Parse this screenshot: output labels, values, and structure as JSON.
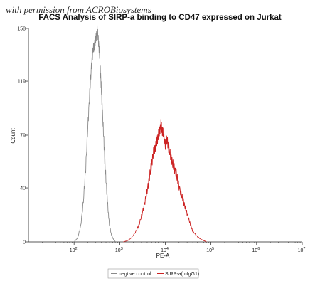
{
  "watermark": "with permission from ACROBiosystems",
  "chart_data": {
    "type": "line",
    "title": "FACS Analysis of SIRP-a binding to CD47 expressed on Jurkat",
    "xlabel": "PE-A",
    "ylabel": "Count",
    "x_scale": "log",
    "xlim": [
      10,
      10000000
    ],
    "ylim": [
      0,
      158
    ],
    "y_ticks": [
      0,
      40,
      79,
      119,
      158
    ],
    "x_ticks": [
      {
        "value": 100,
        "base": "10",
        "exp": "2"
      },
      {
        "value": 1000,
        "base": "10",
        "exp": "3"
      },
      {
        "value": 10000,
        "base": "10",
        "exp": "4"
      },
      {
        "value": 100000,
        "base": "10",
        "exp": "5"
      },
      {
        "value": 1000000,
        "base": "10",
        "exp": "6"
      },
      {
        "value": 10000000,
        "base": "10",
        "exp": "7"
      }
    ],
    "grid": false,
    "legend_position": "bottom",
    "series": [
      {
        "name": "negtive control",
        "color": "#8a8a8a",
        "x": [
          100,
          120,
          140,
          160,
          180,
          200,
          220,
          240,
          260,
          280,
          300,
          320,
          340,
          360,
          380,
          400,
          420,
          450,
          480,
          520,
          560,
          600,
          650,
          700,
          760,
          820
        ],
        "values": [
          0,
          3,
          12,
          30,
          55,
          85,
          110,
          130,
          142,
          146,
          150,
          157,
          150,
          140,
          125,
          110,
          95,
          75,
          55,
          38,
          22,
          12,
          6,
          3,
          1,
          0
        ]
      },
      {
        "name": "SIRP-a(mIgG1)",
        "color": "#cc2222",
        "x": [
          1200,
          1500,
          1800,
          2200,
          2600,
          3000,
          3500,
          4000,
          4500,
          5000,
          5500,
          6000,
          6500,
          7000,
          7500,
          8000,
          8500,
          9000,
          10000,
          11000,
          12000,
          13500,
          15000,
          17000,
          19000,
          22000,
          25000,
          28000,
          32000,
          36000,
          40000,
          50000,
          60000,
          80000
        ],
        "values": [
          0,
          1,
          3,
          7,
          12,
          19,
          28,
          38,
          48,
          58,
          66,
          70,
          74,
          79,
          82,
          87,
          83,
          80,
          72,
          76,
          68,
          62,
          56,
          52,
          44,
          36,
          30,
          24,
          18,
          12,
          8,
          4,
          2,
          0
        ]
      }
    ]
  }
}
